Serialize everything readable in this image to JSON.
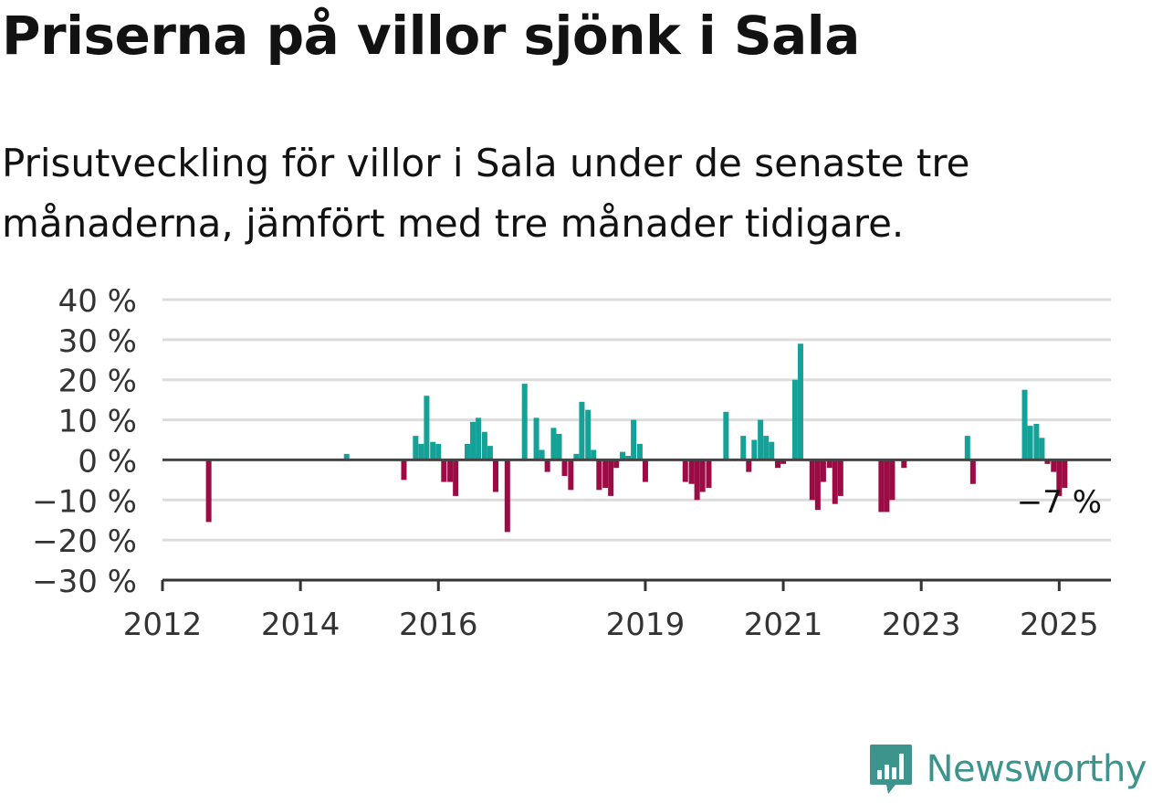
{
  "title": "Priserna på villor sjönk i Sala",
  "subtitle": "Prisutveckling för villor i Sala under de senaste tre månaderna, jämfört med tre månader tidigare.",
  "brand": {
    "name": "Newsworthy",
    "color": "#3d948d"
  },
  "chart_data": {
    "type": "bar",
    "ylim": [
      -30,
      40
    ],
    "yticks": [
      40,
      30,
      20,
      10,
      0,
      -10,
      -20,
      -30
    ],
    "ytick_labels": [
      "40 %",
      "30 %",
      "20 %",
      "10 %",
      "0 %",
      "−10 %",
      "−20 %",
      "−30 %"
    ],
    "xticks": [
      {
        "label": "2012",
        "x": 2012.0
      },
      {
        "label": "2014",
        "x": 2014.0
      },
      {
        "label": "2016",
        "x": 2016.0
      },
      {
        "label": "2019",
        "x": 2019.0
      },
      {
        "label": "2021",
        "x": 2021.0
      },
      {
        "label": "2023",
        "x": 2023.0
      },
      {
        "label": "2025",
        "x": 2025.0
      }
    ],
    "xlim": [
      2012.0,
      2025.75
    ],
    "grid": true,
    "colors": {
      "positive": "#13a198",
      "negative": "#9c0b44"
    },
    "annotation": {
      "text": "−7 %",
      "value": -7
    },
    "x": [
      2012.67,
      2014.67,
      2015.5,
      2015.67,
      2015.75,
      2015.83,
      2015.92,
      2016.0,
      2016.08,
      2016.17,
      2016.25,
      2016.42,
      2016.5,
      2016.58,
      2016.67,
      2016.75,
      2016.83,
      2017.0,
      2017.25,
      2017.42,
      2017.5,
      2017.58,
      2017.67,
      2017.75,
      2017.83,
      2017.92,
      2018.0,
      2018.08,
      2018.17,
      2018.25,
      2018.33,
      2018.42,
      2018.5,
      2018.58,
      2018.67,
      2018.75,
      2018.83,
      2018.92,
      2019.0,
      2019.58,
      2019.67,
      2019.75,
      2019.83,
      2019.92,
      2020.17,
      2020.42,
      2020.5,
      2020.58,
      2020.67,
      2020.75,
      2020.83,
      2020.92,
      2021.0,
      2021.17,
      2021.25,
      2021.42,
      2021.5,
      2021.58,
      2021.67,
      2021.75,
      2021.83,
      2022.42,
      2022.5,
      2022.58,
      2022.75,
      2023.67,
      2023.75,
      2024.5,
      2024.58,
      2024.67,
      2024.75,
      2024.83,
      2024.92,
      2025.0,
      2025.08
    ],
    "values": [
      -15.5,
      1.5,
      -5,
      6,
      4,
      16,
      4.5,
      4,
      -5.5,
      -5.5,
      -9,
      4,
      9.5,
      10.5,
      7,
      3.5,
      -8,
      -18,
      19,
      10.5,
      2.5,
      -3,
      8,
      6.5,
      -4,
      -7.5,
      1.5,
      14.5,
      12.5,
      2.5,
      -7.5,
      -7,
      -9,
      -2,
      2,
      1,
      10,
      4,
      -5.5,
      -5.5,
      -6,
      -10,
      -8,
      -7,
      12,
      6,
      -3,
      5,
      10,
      6,
      4.5,
      -2,
      -1,
      20,
      29,
      -10,
      -12.5,
      -5.5,
      -2,
      -11,
      -9,
      -13,
      -13,
      -10,
      -2,
      6,
      -6,
      17.5,
      8.5,
      9,
      5.5,
      -1,
      -3,
      -9,
      -7
    ]
  }
}
